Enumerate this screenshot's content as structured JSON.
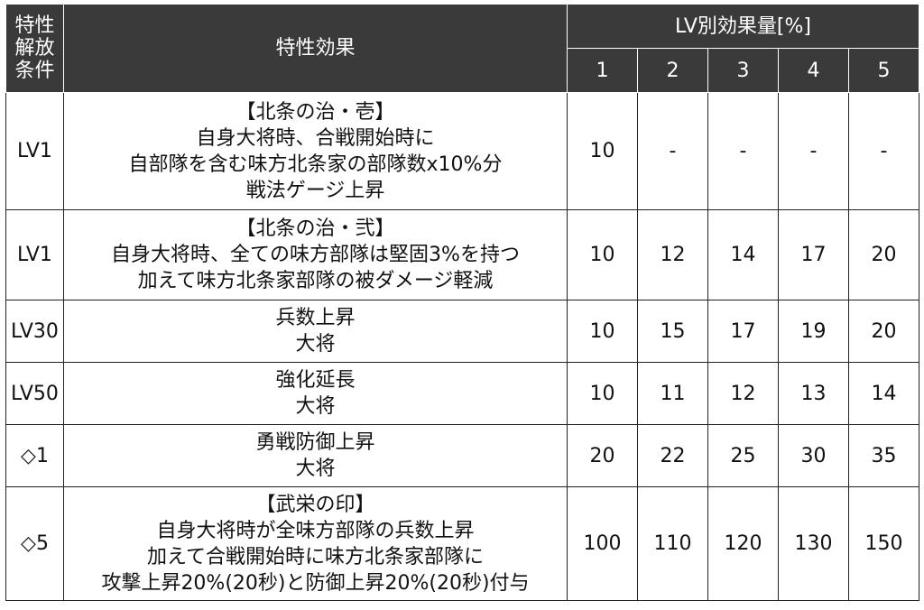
{
  "header": {
    "condition_label": [
      "特性",
      "解放",
      "条件"
    ],
    "effect_label": "特性効果",
    "level_group_label": "LV別効果量[%]",
    "levels": [
      "1",
      "2",
      "3",
      "4",
      "5"
    ]
  },
  "rows": [
    {
      "condition": "LV1",
      "effect_lines": [
        "【北条の治・壱】",
        "自身大将時、合戦開始時に",
        "自部隊を含む味方北条家の部隊数x10%分",
        "戦法ゲージ上昇"
      ],
      "values": [
        "10",
        "-",
        "-",
        "-",
        "-"
      ]
    },
    {
      "condition": "LV1",
      "effect_lines": [
        "【北条の治・弐】",
        "自身大将時、全ての味方部隊は堅固3%を持つ",
        "加えて味方北条家部隊の被ダメージ軽減"
      ],
      "values": [
        "10",
        "12",
        "14",
        "17",
        "20"
      ]
    },
    {
      "condition": "LV30",
      "effect_lines": [
        "兵数上昇",
        "大将"
      ],
      "values": [
        "10",
        "15",
        "17",
        "19",
        "20"
      ]
    },
    {
      "condition": "LV50",
      "effect_lines": [
        "強化延長",
        "大将"
      ],
      "values": [
        "10",
        "11",
        "12",
        "13",
        "14"
      ]
    },
    {
      "condition": "◇1",
      "effect_lines": [
        "勇戦防御上昇",
        "大将"
      ],
      "values": [
        "20",
        "22",
        "25",
        "30",
        "35"
      ]
    },
    {
      "condition": "◇5",
      "effect_lines": [
        "【武栄の印】",
        "自身大将時が全味方部隊の兵数上昇",
        "加えて合戦開始時に味方北条家部隊に",
        "攻撃上昇20%(20秒)と防御上昇20%(20秒)付与"
      ],
      "values": [
        "100",
        "110",
        "120",
        "130",
        "150"
      ]
    }
  ]
}
